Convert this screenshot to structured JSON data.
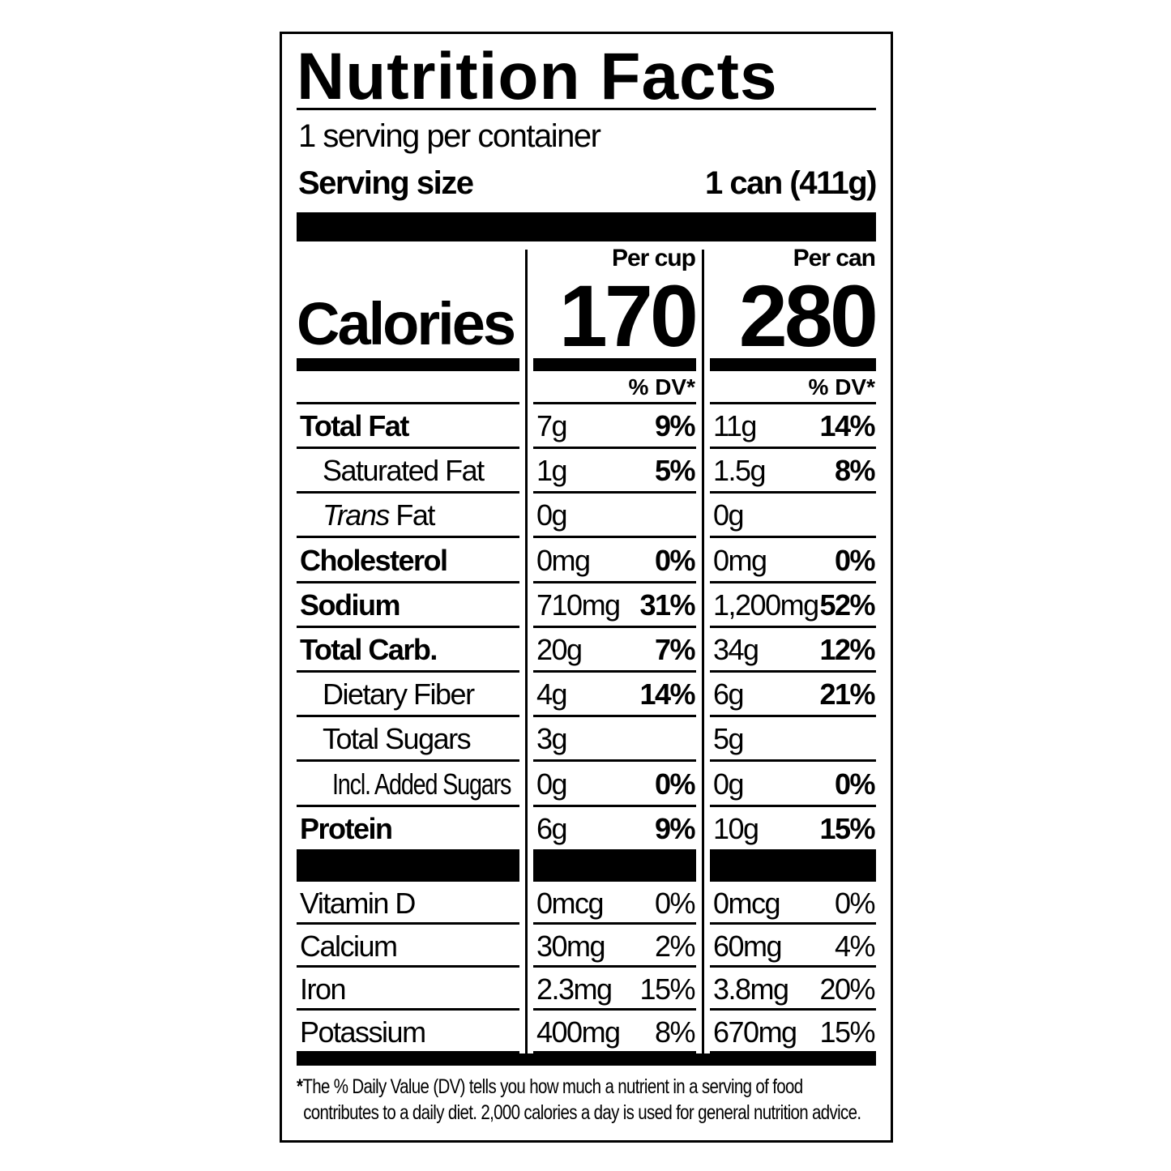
{
  "title": "Nutrition Facts",
  "servings_per_container": "1 serving per container",
  "serving_size_label": "Serving size",
  "serving_size_value": "1 can (411g)",
  "calories_label": "Calories",
  "columns": [
    {
      "header": "Per cup",
      "calories": "170",
      "dv_header": "% DV*"
    },
    {
      "header": "Per can",
      "calories": "280",
      "dv_header": "% DV*"
    }
  ],
  "nutrients": [
    {
      "label": "Total Fat",
      "style": "bold",
      "indent": 0,
      "cup": [
        "7g",
        "9%"
      ],
      "can": [
        "11g",
        "14%"
      ]
    },
    {
      "label": "Saturated Fat",
      "style": "normal",
      "indent": 1,
      "cup": [
        "1g",
        "5%"
      ],
      "can": [
        "1.5g",
        "8%"
      ]
    },
    {
      "label": "Trans Fat",
      "style": "trans",
      "indent": 1,
      "cup": [
        "0g",
        ""
      ],
      "can": [
        "0g",
        ""
      ]
    },
    {
      "label": "Cholesterol",
      "style": "bold",
      "indent": 0,
      "cup": [
        "0mg",
        "0%"
      ],
      "can": [
        "0mg",
        "0%"
      ]
    },
    {
      "label": "Sodium",
      "style": "bold",
      "indent": 0,
      "cup": [
        "710mg",
        "31%"
      ],
      "can": [
        "1,200mg",
        "52%"
      ]
    },
    {
      "label": "Total Carb.",
      "style": "bold",
      "indent": 0,
      "cup": [
        "20g",
        "7%"
      ],
      "can": [
        "34g",
        "12%"
      ]
    },
    {
      "label": "Dietary Fiber",
      "style": "normal",
      "indent": 1,
      "cup": [
        "4g",
        "14%"
      ],
      "can": [
        "6g",
        "21%"
      ]
    },
    {
      "label": "Total Sugars",
      "style": "normal",
      "indent": 1,
      "cup": [
        "3g",
        ""
      ],
      "can": [
        "5g",
        ""
      ]
    },
    {
      "label": "Incl. Added Sugars",
      "style": "normal",
      "indent": 2,
      "cup": [
        "0g",
        "0%"
      ],
      "can": [
        "0g",
        "0%"
      ]
    },
    {
      "label": "Protein",
      "style": "bold",
      "indent": 0,
      "cup": [
        "6g",
        "9%"
      ],
      "can": [
        "10g",
        "15%"
      ]
    }
  ],
  "vitamins": [
    {
      "label": "Vitamin D",
      "cup": [
        "0mcg",
        "0%"
      ],
      "can": [
        "0mcg",
        "0%"
      ]
    },
    {
      "label": "Calcium",
      "cup": [
        "30mg",
        "2%"
      ],
      "can": [
        "60mg",
        "4%"
      ]
    },
    {
      "label": "Iron",
      "cup": [
        "2.3mg",
        "15%"
      ],
      "can": [
        "3.8mg",
        "20%"
      ]
    },
    {
      "label": "Potassium",
      "cup": [
        "400mg",
        "8%"
      ],
      "can": [
        "670mg",
        "15%"
      ]
    }
  ],
  "footnote": {
    "asterisk": "*",
    "line1": "The % Daily Value (DV) tells you how much a nutrient in a serving of food",
    "line2": "contributes to a daily diet. 2,000 calories a day is used for general nutrition advice."
  }
}
